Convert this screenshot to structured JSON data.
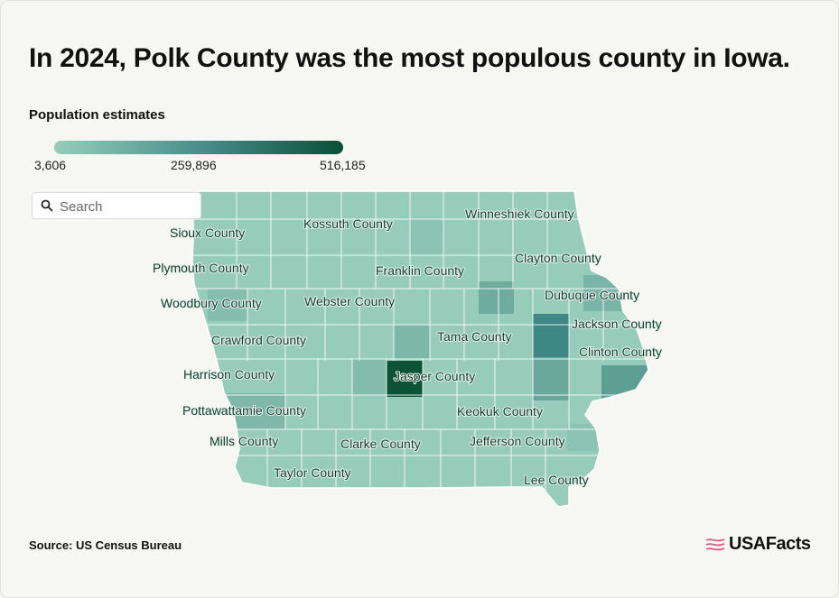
{
  "title": "In 2024, Polk County was the most populous county in Iowa.",
  "legend": {
    "title": "Population estimates",
    "min": "3,606",
    "mid": "259,896",
    "max": "516,185"
  },
  "search": {
    "placeholder": "Search"
  },
  "labels": [
    "Sioux County",
    "Kossuth County",
    "Winneshiek County",
    "Plymouth County",
    "Franklin County",
    "Clayton County",
    "Dubuque County",
    "Woodbury County",
    "Webster County",
    "Jackson County",
    "Tama County",
    "Crawford County",
    "Clinton County",
    "Harrison County",
    "Jasper County",
    "Pottawattamie County",
    "Keokuk County",
    "Mills County",
    "Clarke County",
    "Jefferson County",
    "Taylor County",
    "Lee County"
  ],
  "colors": {
    "low": "#96cdb9",
    "mid": "#4a8f8c",
    "high": "#0a4f37",
    "border": "#ffffff"
  },
  "source": "Source: US Census Bureau",
  "brand": "USAFacts"
}
